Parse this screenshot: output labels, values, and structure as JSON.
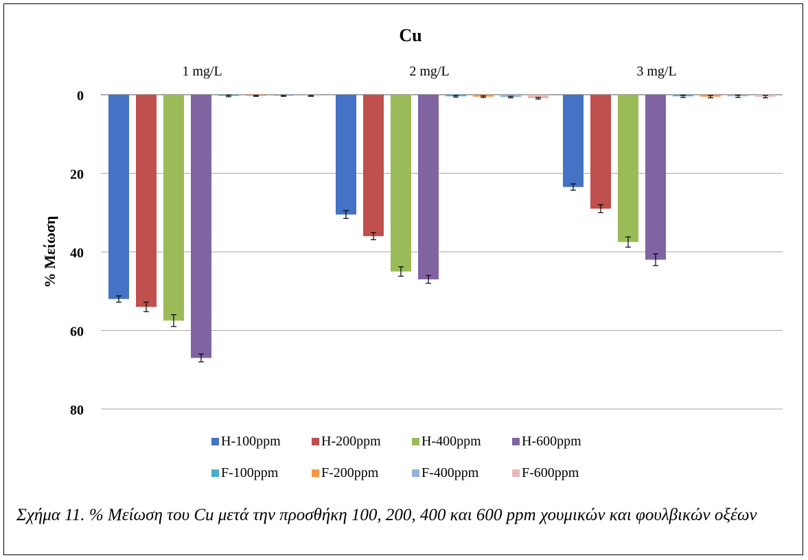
{
  "chart_data": {
    "type": "bar",
    "title": "Cu",
    "ylabel": "% Μείωση",
    "xlabel": "",
    "y_axis": {
      "min": 0,
      "max": 80,
      "inverted": true,
      "ticks": [
        0,
        20,
        40,
        60,
        80
      ],
      "tick_labels": [
        "0",
        "20",
        "40",
        "60",
        "80"
      ]
    },
    "grid": true,
    "legend_position": "bottom",
    "categories": [
      "1 mg/L",
      "2 mg/L",
      "3 mg/L"
    ],
    "series": [
      {
        "name": "H-100ppm",
        "color": "#4472C4",
        "values": [
          52.0,
          30.5,
          23.5
        ],
        "errors": [
          0.8,
          1.0,
          0.8
        ]
      },
      {
        "name": "H-200ppm",
        "color": "#C0504D",
        "values": [
          54.0,
          36.0,
          29.0
        ],
        "errors": [
          1.2,
          0.9,
          1.0
        ]
      },
      {
        "name": "H-400ppm",
        "color": "#9BBB59",
        "values": [
          57.5,
          45.0,
          37.5
        ],
        "errors": [
          1.5,
          1.2,
          1.3
        ]
      },
      {
        "name": "H-600ppm",
        "color": "#8064A2",
        "values": [
          67.0,
          47.0,
          42.0
        ],
        "errors": [
          1.0,
          1.0,
          1.5
        ]
      },
      {
        "name": "F-100ppm",
        "color": "#4BACC6",
        "values": [
          0.3,
          0.4,
          0.4
        ],
        "errors": [
          0.2,
          0.2,
          0.3
        ]
      },
      {
        "name": "F-200ppm",
        "color": "#F79646",
        "values": [
          0.3,
          0.5,
          0.5
        ],
        "errors": [
          0.1,
          0.2,
          0.3
        ]
      },
      {
        "name": "F-400ppm",
        "color": "#95B3D7",
        "values": [
          0.3,
          0.6,
          0.4
        ],
        "errors": [
          0.1,
          0.2,
          0.3
        ]
      },
      {
        "name": "F-600ppm",
        "color": "#E6B9B8",
        "values": [
          0.3,
          0.9,
          0.5
        ],
        "errors": [
          0.1,
          0.2,
          0.3
        ]
      }
    ]
  },
  "caption": {
    "text": "Σχήμα 11. % Μείωση του Cu μετά την προσθήκη 100, 200, 400 και 600 ppm χουμικών και φουλβικών οξέων"
  }
}
